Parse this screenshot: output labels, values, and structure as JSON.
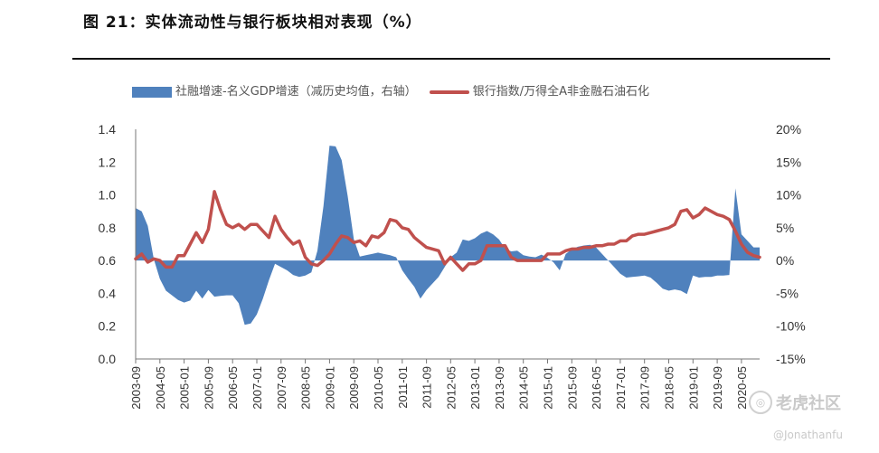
{
  "figure": {
    "title": "图 21：实体流动性与银行板块相对表现（%）"
  },
  "watermark": {
    "brand": "老虎社区",
    "handle": "@Jonathanfu"
  },
  "chart_data": {
    "type": "area+line",
    "legend": {
      "area": "社融增速-名义GDP增速（减历史均值，右轴）",
      "line": "银行指数/万得全A非金融石油石化"
    },
    "colors": {
      "area": "#4f81bd",
      "line": "#c0504d"
    },
    "x_tick_labels": [
      "2003-09",
      "2004-05",
      "2005-01",
      "2005-09",
      "2006-05",
      "2007-01",
      "2007-09",
      "2008-05",
      "2009-01",
      "2009-09",
      "2010-05",
      "2011-01",
      "2011-09",
      "2012-05",
      "2013-01",
      "2013-09",
      "2014-05",
      "2015-01",
      "2015-09",
      "2016-05",
      "2017-01",
      "2017-09",
      "2018-05",
      "2019-01",
      "2019-09",
      "2020-05"
    ],
    "left_axis": {
      "min": 0.0,
      "max": 1.4,
      "ticks": [
        "0.0",
        "0.2",
        "0.4",
        "0.6",
        "0.8",
        "1.0",
        "1.2",
        "1.4"
      ]
    },
    "right_axis": {
      "min": -15,
      "max": 20,
      "ticks": [
        "-15%",
        "-10%",
        "-5%",
        "0%",
        "5%",
        "10%",
        "15%",
        "20%"
      ]
    },
    "series": [
      {
        "name": "社融增速-名义GDP增速（减历史均值，右轴）",
        "axis": "right",
        "type": "area",
        "x": [
          0,
          1,
          2,
          3,
          4,
          5,
          6,
          7,
          8,
          9,
          10,
          11,
          12,
          13,
          14,
          15,
          16,
          17,
          18,
          19,
          20,
          21,
          22,
          23,
          24,
          25,
          26,
          27,
          28,
          29,
          30,
          31,
          32,
          33,
          34,
          35,
          36,
          37,
          38,
          39,
          40,
          41,
          42,
          43,
          44,
          45,
          46,
          47,
          48,
          49,
          50,
          51,
          52,
          53,
          54,
          55,
          56,
          57,
          58,
          59,
          60,
          61,
          62,
          63,
          64,
          65,
          66,
          67,
          68,
          69,
          70,
          71,
          72,
          73,
          74,
          75,
          76,
          77,
          78,
          79,
          80,
          81,
          82,
          83,
          84,
          85,
          86,
          87,
          88,
          89,
          90,
          91,
          92,
          93,
          94,
          95,
          96,
          97,
          98,
          99,
          100,
          101,
          102,
          103
        ],
        "values": [
          8.0,
          7.5,
          5.3,
          0.2,
          -2.8,
          -4.6,
          -5.3,
          -6.0,
          -6.4,
          -6.1,
          -4.6,
          -5.8,
          -4.5,
          -5.5,
          -5.4,
          -5.3,
          -5.3,
          -6.5,
          -9.8,
          -9.6,
          -8.2,
          -5.8,
          -3.0,
          -0.5,
          -1.0,
          -1.5,
          -2.2,
          -2.5,
          -2.3,
          -1.8,
          1.5,
          8.3,
          17.5,
          17.4,
          15.3,
          9.8,
          3.3,
          0.6,
          0.8,
          1.0,
          1.2,
          1.0,
          0.8,
          0.5,
          -1.5,
          -2.8,
          -4.0,
          -5.8,
          -4.5,
          -3.5,
          -2.5,
          -1.0,
          0.5,
          1.2,
          3.2,
          3.0,
          3.4,
          4.1,
          4.5,
          4.0,
          3.2,
          1.8,
          1.4,
          1.5,
          0.8,
          0.6,
          0.5,
          0.9,
          0.4,
          -0.3,
          -1.5,
          1.0,
          1.7,
          2.1,
          2.3,
          2.4,
          2.0,
          1.0,
          0.0,
          -1.0,
          -2.0,
          -2.6,
          -2.5,
          -2.4,
          -2.3,
          -2.6,
          -3.4,
          -4.3,
          -4.6,
          -4.4,
          -4.6,
          -5.1,
          -2.3,
          -2.6,
          -2.5,
          -2.5,
          -2.3,
          -2.3,
          -2.2,
          11.0,
          4.0,
          3.0,
          2.0,
          2.0
        ]
      },
      {
        "name": "银行指数/万得全A非金融石油石化",
        "axis": "left",
        "type": "line",
        "x": [
          0,
          1,
          2,
          3,
          4,
          5,
          6,
          7,
          8,
          9,
          10,
          11,
          12,
          13,
          14,
          15,
          16,
          17,
          18,
          19,
          20,
          21,
          22,
          23,
          24,
          25,
          26,
          27,
          28,
          29,
          30,
          31,
          32,
          33,
          34,
          35,
          36,
          37,
          38,
          39,
          40,
          41,
          42,
          43,
          44,
          45,
          46,
          47,
          48,
          49,
          50,
          51,
          52,
          53,
          54,
          55,
          56,
          57,
          58,
          59,
          60,
          61,
          62,
          63,
          64,
          65,
          66,
          67,
          68,
          69,
          70,
          71,
          72,
          73,
          74,
          75,
          76,
          77,
          78,
          79,
          80,
          81,
          82,
          83,
          84,
          85,
          86,
          87,
          88,
          89,
          90,
          91,
          92,
          93,
          94,
          95,
          96,
          97,
          98,
          99,
          100,
          101,
          102,
          103
        ],
        "values": [
          0.61,
          0.64,
          0.59,
          0.61,
          0.6,
          0.56,
          0.56,
          0.63,
          0.63,
          0.7,
          0.77,
          0.71,
          0.79,
          1.02,
          0.91,
          0.82,
          0.8,
          0.82,
          0.79,
          0.82,
          0.82,
          0.78,
          0.74,
          0.87,
          0.79,
          0.74,
          0.7,
          0.72,
          0.62,
          0.58,
          0.57,
          0.6,
          0.64,
          0.7,
          0.75,
          0.74,
          0.71,
          0.72,
          0.69,
          0.75,
          0.74,
          0.77,
          0.85,
          0.84,
          0.8,
          0.79,
          0.74,
          0.71,
          0.68,
          0.67,
          0.66,
          0.58,
          0.62,
          0.58,
          0.54,
          0.58,
          0.58,
          0.6,
          0.69,
          0.69,
          0.69,
          0.69,
          0.62,
          0.6,
          0.6,
          0.6,
          0.6,
          0.6,
          0.64,
          0.64,
          0.64,
          0.66,
          0.67,
          0.67,
          0.68,
          0.68,
          0.69,
          0.69,
          0.7,
          0.7,
          0.72,
          0.72,
          0.75,
          0.76,
          0.76,
          0.77,
          0.78,
          0.79,
          0.8,
          0.82,
          0.9,
          0.91,
          0.86,
          0.88,
          0.92,
          0.9,
          0.88,
          0.87,
          0.85,
          0.78,
          0.7,
          0.65,
          0.63,
          0.62
        ]
      }
    ]
  }
}
